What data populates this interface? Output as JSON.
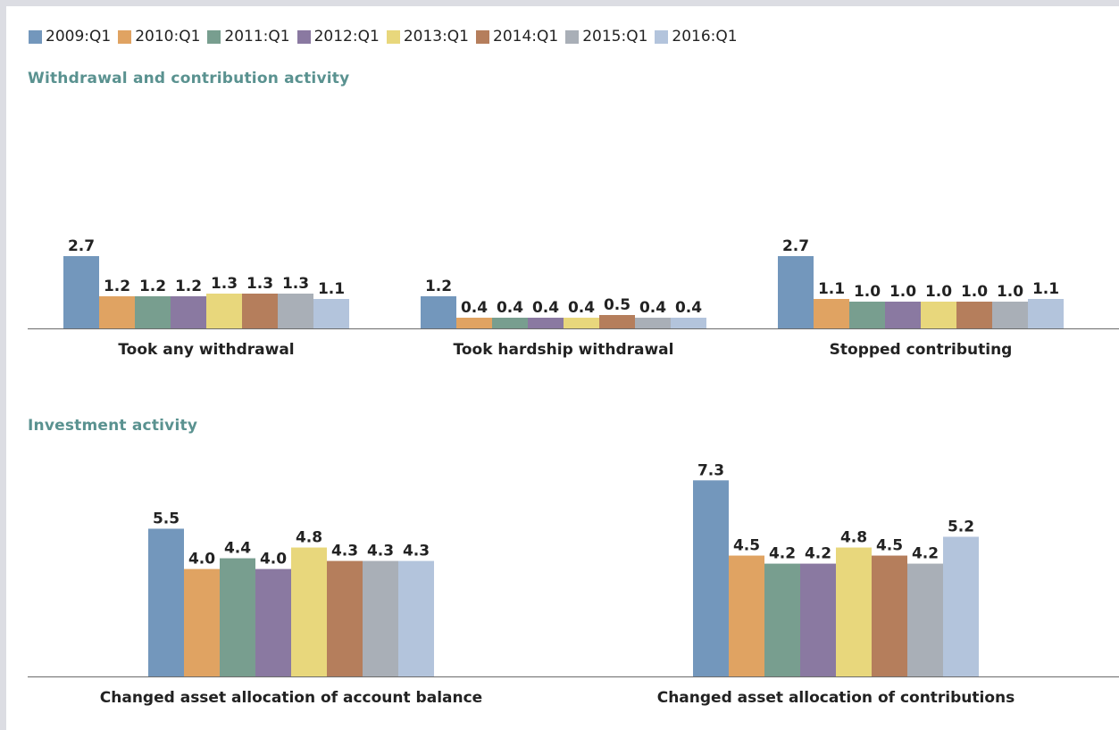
{
  "legend": [
    "2009:Q1",
    "2010:Q1",
    "2011:Q1",
    "2012:Q1",
    "2013:Q1",
    "2014:Q1",
    "2015:Q1",
    "2016:Q1"
  ],
  "colors": [
    "#7397bc",
    "#e0a362",
    "#789e8f",
    "#8a79a1",
    "#e8d77c",
    "#b57e5c",
    "#a9afb7",
    "#b3c4dc"
  ],
  "sections": {
    "withdrawal_title": "Withdrawal and contribution activity",
    "investment_title": "Investment activity"
  },
  "chart_data": [
    {
      "type": "bar",
      "title": "Withdrawal and contribution activity",
      "categories": [
        "Took any withdrawal",
        "Took hardship withdrawal",
        "Stopped contributing"
      ],
      "series": [
        {
          "name": "2009:Q1",
          "values": [
            2.7,
            1.2,
            2.7
          ]
        },
        {
          "name": "2010:Q1",
          "values": [
            1.2,
            0.4,
            1.1
          ]
        },
        {
          "name": "2011:Q1",
          "values": [
            1.2,
            0.4,
            1.0
          ]
        },
        {
          "name": "2012:Q1",
          "values": [
            1.2,
            0.4,
            1.0
          ]
        },
        {
          "name": "2013:Q1",
          "values": [
            1.3,
            0.4,
            1.0
          ]
        },
        {
          "name": "2014:Q1",
          "values": [
            1.3,
            0.5,
            1.0
          ]
        },
        {
          "name": "2015:Q1",
          "values": [
            1.3,
            0.4,
            1.0
          ]
        },
        {
          "name": "2016:Q1",
          "values": [
            1.1,
            0.4,
            1.1
          ]
        }
      ],
      "legend_position": "top",
      "grid": false
    },
    {
      "type": "bar",
      "title": "Investment activity",
      "categories": [
        "Changed asset allocation of account balance",
        "Changed asset allocation of contributions"
      ],
      "series": [
        {
          "name": "2009:Q1",
          "values": [
            5.5,
            7.3
          ]
        },
        {
          "name": "2010:Q1",
          "values": [
            4.0,
            4.5
          ]
        },
        {
          "name": "2011:Q1",
          "values": [
            4.4,
            4.2
          ]
        },
        {
          "name": "2012:Q1",
          "values": [
            4.0,
            4.2
          ]
        },
        {
          "name": "2013:Q1",
          "values": [
            4.8,
            4.8
          ]
        },
        {
          "name": "2014:Q1",
          "values": [
            4.3,
            4.5
          ]
        },
        {
          "name": "2015:Q1",
          "values": [
            4.3,
            4.2
          ]
        },
        {
          "name": "2016:Q1",
          "values": [
            4.3,
            5.2
          ]
        }
      ],
      "legend_position": "top",
      "grid": false
    }
  ]
}
